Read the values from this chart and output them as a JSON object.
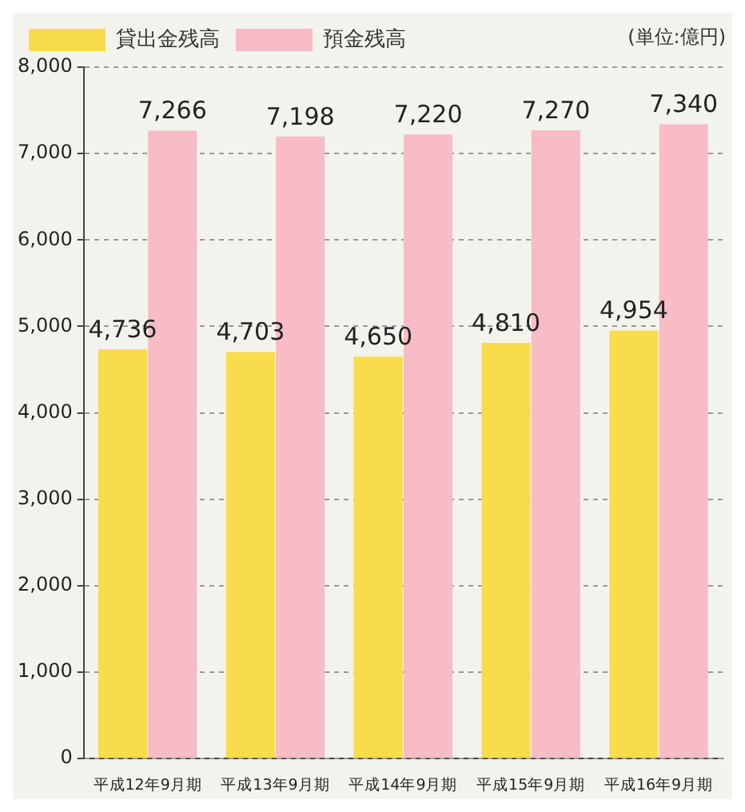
{
  "chart_data": {
    "type": "bar",
    "categories": [
      "平成12年9月期",
      "平成13年9月期",
      "平成14年9月期",
      "平成15年9月期",
      "平成16年9月期"
    ],
    "series": [
      {
        "name": "貸出金残高",
        "color": "#f9dc4c",
        "values": [
          4736,
          4703,
          4650,
          4810,
          4954
        ],
        "value_labels": [
          "4,736",
          "4,703",
          "4,650",
          "4,810",
          "4,954"
        ]
      },
      {
        "name": "預金残高",
        "color": "#f7bcc5",
        "values": [
          7266,
          7198,
          7220,
          7270,
          7340
        ],
        "value_labels": [
          "7,266",
          "7,198",
          "7,220",
          "7,270",
          "7,340"
        ]
      }
    ],
    "ylim": [
      0,
      8000
    ],
    "yticks": [
      {
        "value": 0,
        "label": "0"
      },
      {
        "value": 1000,
        "label": "1,000"
      },
      {
        "value": 2000,
        "label": "2,000"
      },
      {
        "value": 3000,
        "label": "3,000"
      },
      {
        "value": 4000,
        "label": "4,000"
      },
      {
        "value": 5000,
        "label": "5,000"
      },
      {
        "value": 6000,
        "label": "6,000"
      },
      {
        "value": 7000,
        "label": "7,000"
      },
      {
        "value": 8000,
        "label": "8,000"
      }
    ],
    "grid": "y",
    "legend": "top left",
    "annotations": [
      "(単位:億円)"
    ]
  }
}
